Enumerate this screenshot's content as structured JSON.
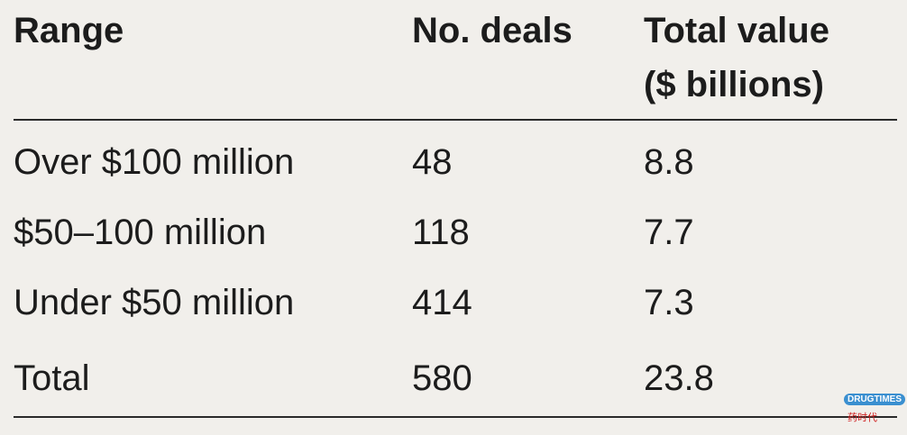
{
  "table": {
    "header": [
      "Range",
      "No. deals",
      "Total value ($ billions)"
    ],
    "rows": [
      [
        "Over $100 million",
        48,
        8.8
      ],
      [
        "$50–100 million",
        118,
        7.7
      ],
      [
        "Under $50 million",
        414,
        7.3
      ],
      [
        "Total",
        580,
        23.8
      ]
    ]
  },
  "watermark": {
    "brand": "DRUGTIMES",
    "name": "药时代"
  }
}
